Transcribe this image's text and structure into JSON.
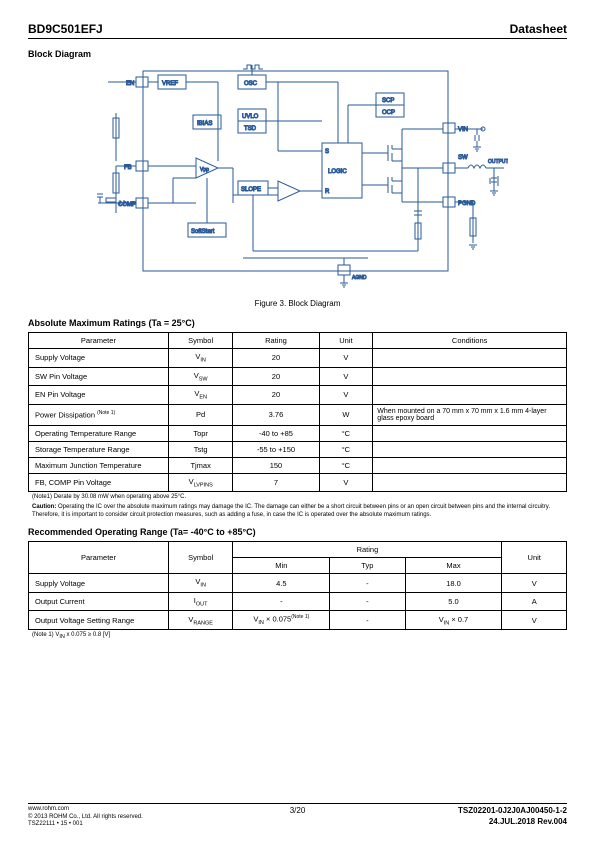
{
  "header": {
    "part": "BD9C501EFJ",
    "doc": "Datasheet"
  },
  "block_diagram": {
    "title": "Block Diagram",
    "caption": "Figure 3. Block Diagram",
    "pins": {
      "EN": "EN",
      "FB": "FB",
      "COMP": "COMP",
      "VIN": "VIN",
      "SW": "SW",
      "OUTPUT": "OUTPUT",
      "PGND": "PGND",
      "AGND": "AGND"
    },
    "blocks": {
      "VREF": "VREF",
      "OSC": "OSC",
      "IBIAS": "IBIAS",
      "UVLO": "UVLO",
      "TSD": "TSD",
      "SCP": "SCP",
      "OCP": "OCP",
      "LOGIC": "LOGIC",
      "SLOPE": "SLOPE",
      "SoftStart": "SoftStart",
      "Vpp": "Vpp",
      "S": "S",
      "R": "R"
    }
  },
  "amr": {
    "title": "Absolute Maximum Ratings (Ta = 25°C)",
    "headers": [
      "Parameter",
      "Symbol",
      "Rating",
      "Unit",
      "Conditions"
    ],
    "rows": [
      {
        "param": "Supply Voltage",
        "symbol": "V",
        "sub": "IN",
        "rating": "20",
        "unit": "V",
        "cond": ""
      },
      {
        "param": "SW Pin Voltage",
        "symbol": "V",
        "sub": "SW",
        "rating": "20",
        "unit": "V",
        "cond": ""
      },
      {
        "param": "EN Pin Voltage",
        "symbol": "V",
        "sub": "EN",
        "rating": "20",
        "unit": "V",
        "cond": ""
      },
      {
        "param": "Power Dissipation ",
        "symbol": "Pd",
        "sub": "",
        "rating": "3.76",
        "unit": "W",
        "cond": "When mounted on a 70 mm x 70 mm x 1.6 mm 4-layer glass epoxy board",
        "noteSup": "(Note 1)"
      },
      {
        "param": "Operating Temperature Range",
        "symbol": "Topr",
        "sub": "",
        "rating": "-40 to +85",
        "unit": "°C",
        "cond": ""
      },
      {
        "param": "Storage Temperature Range",
        "symbol": "Tstg",
        "sub": "",
        "rating": "-55 to +150",
        "unit": "°C",
        "cond": ""
      },
      {
        "param": "Maximum Junction Temperature",
        "symbol": "Tjmax",
        "sub": "",
        "rating": "150",
        "unit": "°C",
        "cond": ""
      },
      {
        "param": "FB, COMP Pin Voltage",
        "symbol": "V",
        "sub": "LVPINS",
        "rating": "7",
        "unit": "V",
        "cond": ""
      }
    ],
    "note1": "(Note1) Derate by 30.08 mW when operating above 25°C.",
    "caution_label": "Caution:",
    "caution": " Operating the IC over the absolute maximum ratings may damage the IC. The damage can either be a short circuit between pins or an open circuit between pins and the internal circuitry. Therefore, it is important to consider circuit protection measures, such as adding a fuse, in case the IC is operated over the absolute maximum ratings."
  },
  "roc": {
    "title": "Recommended Operating Range    (Ta= -40°C to +85°C)",
    "headers": {
      "param": "Parameter",
      "symbol": "Symbol",
      "rating": "Rating",
      "min": "Min",
      "typ": "Typ",
      "max": "Max",
      "unit": "Unit"
    },
    "rows": [
      {
        "param": "Supply Voltage",
        "symbol": "V",
        "sub": "IN",
        "min": "4.5",
        "typ": "-",
        "max": "18.0",
        "unit": "V"
      },
      {
        "param": "Output Current",
        "symbol": "I",
        "sub": "OUT",
        "min": "-",
        "typ": "-",
        "max": "5.0",
        "unit": "A"
      },
      {
        "param": "Output Voltage Setting Range",
        "symbol": "V",
        "sub": "RANGE",
        "min": "V<sub>IN</sub> × 0.075<sup>(Note 1)</sup>",
        "typ": "-",
        "max": "V<sub>IN</sub> × 0.7",
        "unit": "V"
      }
    ],
    "note1": "(Note 1) V<sub>IN</sub> x 0.075 ≥ 0.8 [V]"
  },
  "footer": {
    "url": "www.rohm.com",
    "copyright": "© 2013 ROHM Co., Ltd. All rights reserved.",
    "tsz": "TSZ22111 • 15 • 001",
    "page": "3/20",
    "doccode": "TSZ02201-0J2J0AJ00450-1-2",
    "date": "24.JUL.2018  Rev.004"
  },
  "colors": {
    "stroke": "#2a5a9a",
    "text": "#000"
  }
}
